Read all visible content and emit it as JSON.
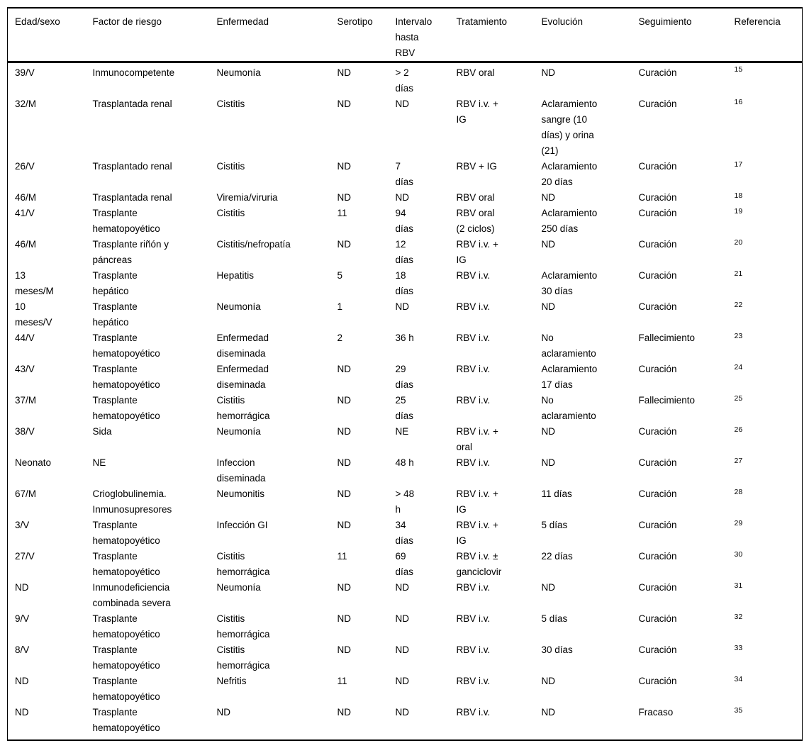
{
  "colors": {
    "text": "#000000",
    "background": "#ffffff",
    "border": "#000000"
  },
  "table": {
    "columns": [
      "Edad/sexo",
      "Factor de riesgo",
      "Enfermedad",
      "Serotipo",
      "Intervalo\nhasta\nRBV",
      "Tratamiento",
      "Evolución",
      "Seguimiento",
      "Referencia"
    ],
    "rows": [
      [
        "39/V",
        "Inmunocompetente",
        "Neumonía",
        "ND",
        "> 2\ndías",
        "RBV oral",
        "ND",
        "Curación",
        "15"
      ],
      [
        "32/M",
        "Trasplantada renal",
        "Cistitis",
        "ND",
        "ND",
        "RBV i.v. +\nIG",
        "Aclaramiento\nsangre (10\ndías) y orina\n(21)",
        "Curación",
        "16"
      ],
      [
        "26/V",
        "Trasplantado renal",
        "Cistitis",
        "ND",
        "7\ndías",
        "RBV + IG",
        "Aclaramiento\n20 días",
        "Curación",
        "17"
      ],
      [
        "46/M",
        "Trasplantada renal",
        "Viremia/viruria",
        "ND",
        "ND",
        "RBV oral",
        "ND",
        "Curación",
        "18"
      ],
      [
        "41/V",
        "Trasplante\nhematopoyético",
        "Cistitis",
        "11",
        "94\ndías",
        "RBV oral\n(2 ciclos)",
        "Aclaramiento\n250 días",
        "Curación",
        "19"
      ],
      [
        "46/M",
        "Trasplante riñón y\npáncreas",
        "Cistitis/nefropatía",
        "ND",
        "12\ndías",
        "RBV i.v. +\nIG",
        "ND",
        "Curación",
        "20"
      ],
      [
        "13\nmeses/M",
        "Trasplante\nhepático",
        "Hepatitis",
        "5",
        "18\ndías",
        "RBV i.v.",
        "Aclaramiento\n30 días",
        "Curación",
        "21"
      ],
      [
        "10\nmeses/V",
        "Trasplante\nhepático",
        "Neumonía",
        "1",
        "ND",
        "RBV i.v.",
        "ND",
        "Curación",
        "22"
      ],
      [
        "44/V",
        "Trasplante\nhematopoyético",
        "Enfermedad\ndiseminada",
        "2",
        "36 h",
        "RBV i.v.",
        "No\naclaramiento",
        "Fallecimiento",
        "23"
      ],
      [
        "43/V",
        "Trasplante\nhematopoyético",
        "Enfermedad\ndiseminada",
        "ND",
        "29\ndías",
        "RBV i.v.",
        "Aclaramiento\n17 días",
        "Curación",
        "24"
      ],
      [
        "37/M",
        "Trasplante\nhematopoyético",
        "Cistitis\nhemorrágica",
        "ND",
        "25\ndías",
        "RBV i.v.",
        "No\naclaramiento",
        "Fallecimiento",
        "25"
      ],
      [
        "38/V",
        "Sida",
        "Neumonía",
        "ND",
        "NE",
        "RBV i.v. +\noral",
        "ND",
        "Curación",
        "26"
      ],
      [
        "Neonato",
        "NE",
        "Infeccion\ndiseminada",
        "ND",
        "48 h",
        "RBV i.v.",
        "ND",
        "Curación",
        "27"
      ],
      [
        "67/M",
        "Crioglobulinemia.\nInmunosupresores",
        "Neumonitis",
        "ND",
        "> 48\nh",
        "RBV i.v. +\nIG",
        "11 días",
        "Curación",
        "28"
      ],
      [
        "3/V",
        "Trasplante\nhematopoyético",
        "Infección GI",
        "ND",
        "34\ndías",
        "RBV i.v. +\nIG",
        "5 días",
        "Curación",
        "29"
      ],
      [
        "27/V",
        "Trasplante\nhematopoyético",
        "Cistitis\nhemorrágica",
        "11",
        "69\ndías",
        "RBV i.v. ±\nganciclovir",
        "22 días",
        "Curación",
        "30"
      ],
      [
        "ND",
        "Inmunodeficiencia\ncombinada severa",
        "Neumonía",
        "ND",
        "ND",
        "RBV i.v.",
        "ND",
        "Curación",
        "31"
      ],
      [
        "9/V",
        "Trasplante\nhematopoyético",
        "Cistitis\nhemorrágica",
        "ND",
        "ND",
        "RBV i.v.",
        "5 días",
        "Curación",
        "32"
      ],
      [
        "8/V",
        "Trasplante\nhematopoyético",
        "Cistitis\nhemorrágica",
        "ND",
        "ND",
        "RBV i.v.",
        "30 días",
        "Curación",
        "33"
      ],
      [
        "ND",
        "Trasplante\nhematopoyético",
        "Nefritis",
        "11",
        "ND",
        "RBV i.v.",
        "ND",
        "Curación",
        "34"
      ],
      [
        "ND",
        "Trasplante\nhematopoyético",
        "ND",
        "ND",
        "ND",
        "RBV i.v.",
        "ND",
        "Fracaso",
        "35"
      ]
    ]
  }
}
